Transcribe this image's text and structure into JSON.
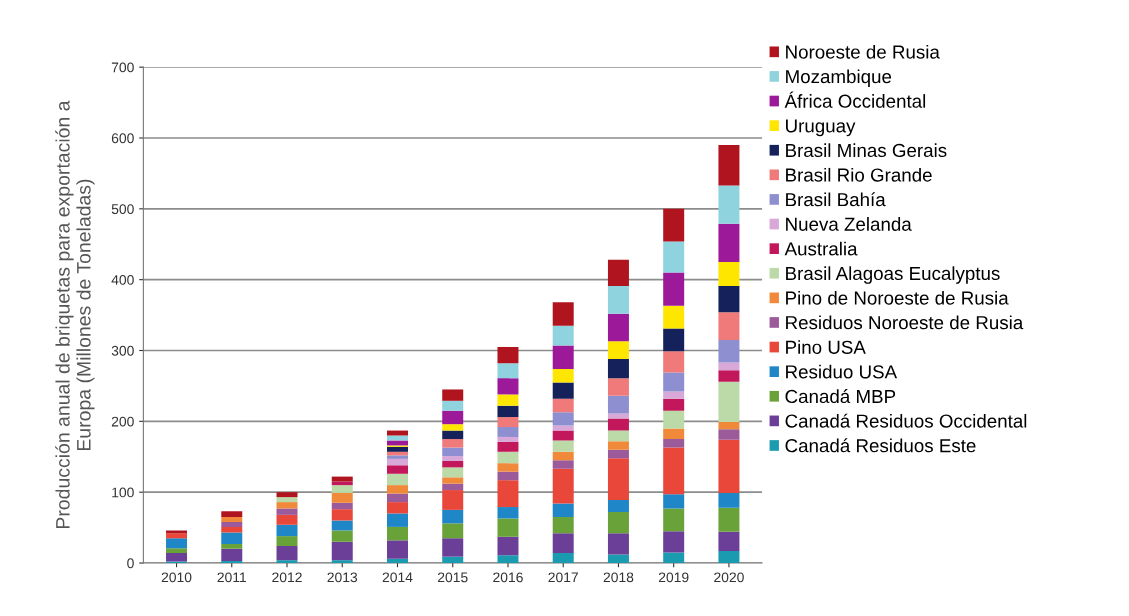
{
  "chart_data": {
    "type": "bar",
    "stacked": true,
    "ylabel": "Producción anual de briquetas para exportación a\nEuropa (Millones de Toneladas)",
    "categories": [
      "2010",
      "2011",
      "2012",
      "2013",
      "2014",
      "2015",
      "2016",
      "2017",
      "2018",
      "2019",
      "2020"
    ],
    "ylim": [
      0,
      700
    ],
    "yticks": [
      0,
      100,
      200,
      300,
      400,
      500,
      600,
      700
    ],
    "grid": "y",
    "legend": "right",
    "series": [
      {
        "name": "Canadá Residuos Este",
        "color": "#1a9bb0",
        "values": [
          2,
          3,
          4,
          4,
          6,
          9,
          11,
          14,
          12,
          15,
          17
        ]
      },
      {
        "name": "Canadá Residuos Occidental",
        "color": "#6b3f98",
        "values": [
          12,
          17,
          20,
          26,
          26,
          26,
          26,
          28,
          30,
          30,
          27
        ]
      },
      {
        "name": "Canadá MBP",
        "color": "#6aa23a",
        "values": [
          7,
          7,
          14,
          16,
          19,
          21,
          26,
          23,
          30,
          32,
          34
        ]
      },
      {
        "name": "Residuo USA",
        "color": "#1f86c8",
        "values": [
          14,
          16,
          16,
          14,
          19,
          19,
          16,
          19,
          17,
          20,
          21
        ]
      },
      {
        "name": "Pino USA",
        "color": "#e8473a",
        "values": [
          7,
          8,
          14,
          16,
          16,
          28,
          38,
          49,
          59,
          66,
          75
        ]
      },
      {
        "name": "Residuos Noroeste de Rusia",
        "color": "#9b5a9a",
        "values": [
          0,
          7,
          9,
          9,
          12,
          9,
          12,
          12,
          12,
          12,
          15
        ]
      },
      {
        "name": "Pino de Noroeste de Rusia",
        "color": "#f08a3a",
        "values": [
          0,
          7,
          9,
          14,
          12,
          9,
          12,
          12,
          12,
          15,
          10
        ]
      },
      {
        "name": "Brasil Alagoas Eucalyptus",
        "color": "#bcd9a8",
        "values": [
          0,
          0,
          7,
          11,
          16,
          14,
          16,
          16,
          15,
          25,
          57
        ]
      },
      {
        "name": "Australia",
        "color": "#c2185b",
        "values": [
          0,
          0,
          0,
          5,
          12,
          9,
          14,
          14,
          17,
          17,
          16
        ]
      },
      {
        "name": "Nueva Zelanda",
        "color": "#d8a8d8",
        "values": [
          0,
          0,
          0,
          0,
          9,
          7,
          7,
          7,
          7,
          10,
          11
        ]
      },
      {
        "name": "Brasil Bahía",
        "color": "#8e8fd0",
        "values": [
          0,
          0,
          0,
          0,
          5,
          12,
          14,
          19,
          25,
          27,
          32
        ]
      },
      {
        "name": "Brasil Rio Grande",
        "color": "#f07a7a",
        "values": [
          0,
          0,
          0,
          0,
          5,
          12,
          14,
          19,
          25,
          30,
          39
        ]
      },
      {
        "name": "Brasil Minas Gerais",
        "color": "#14215a",
        "values": [
          0,
          0,
          0,
          0,
          7,
          12,
          16,
          23,
          27,
          32,
          37
        ]
      },
      {
        "name": "Uruguay",
        "color": "#ffe600",
        "values": [
          0,
          0,
          0,
          0,
          2,
          9,
          16,
          19,
          25,
          32,
          34
        ]
      },
      {
        "name": "África Occidental",
        "color": "#9c1a9a",
        "values": [
          0,
          0,
          0,
          0,
          7,
          19,
          23,
          33,
          39,
          47,
          54
        ]
      },
      {
        "name": "Mozambique",
        "color": "#8fd3de",
        "values": [
          0,
          0,
          0,
          0,
          7,
          14,
          21,
          28,
          39,
          44,
          54
        ]
      },
      {
        "name": "Noroeste de Rusia",
        "color": "#b0141e",
        "values": [
          4,
          8,
          7,
          7,
          7,
          16,
          23,
          33,
          37,
          46,
          57
        ]
      }
    ]
  }
}
